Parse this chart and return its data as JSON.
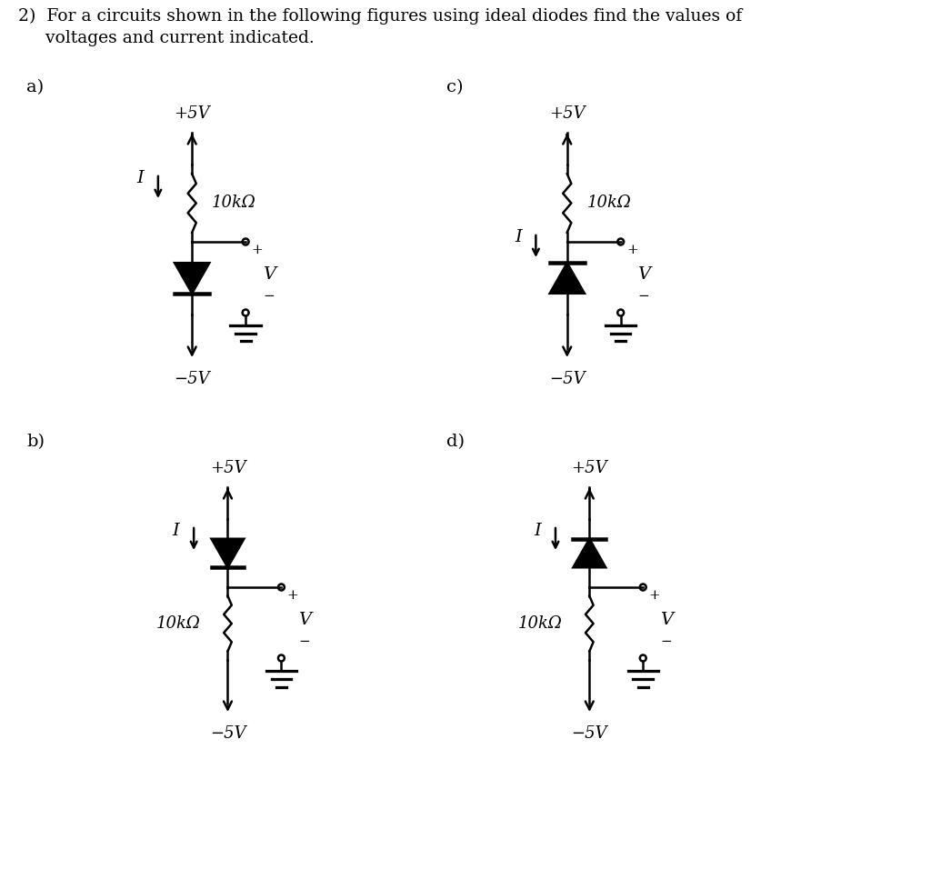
{
  "title_line1": "2)  For a circuits shown in the following figures using ideal diodes find the values of",
  "title_line2": "     voltages and current indicated.",
  "bg_color": "#ffffff",
  "text_color": "#000000",
  "font_size_title": 14,
  "font_size_label": 13,
  "circuits": [
    "a",
    "b",
    "c",
    "d"
  ]
}
